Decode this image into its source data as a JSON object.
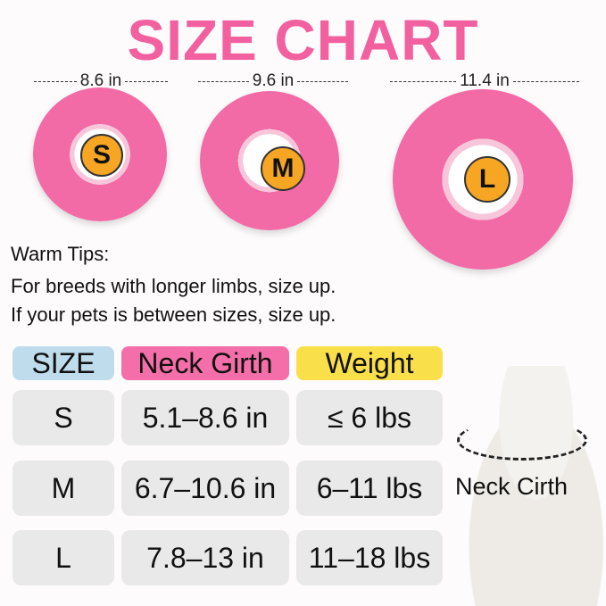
{
  "title": "SIZE CHART",
  "sizes_visual": [
    {
      "letter": "S",
      "diameter": "8.6 in"
    },
    {
      "letter": "M",
      "diameter": "9.6 in"
    },
    {
      "letter": "L",
      "diameter": "11.4 in"
    }
  ],
  "tips": {
    "heading": "Warm Tips:",
    "lines": [
      "For breeds with longer limbs, size up.",
      "If your pets is between sizes, size up."
    ]
  },
  "table": {
    "headers": [
      "SIZE",
      "Neck Girth",
      "Weight"
    ],
    "header_colors": [
      "#bfdcec",
      "#f46fa9",
      "#f9e04b"
    ],
    "rows": [
      [
        "S",
        "5.1–8.6 in",
        "≤ 6 lbs"
      ],
      [
        "M",
        "6.7–10.6 in",
        "6–11 lbs"
      ],
      [
        "L",
        "7.8–13 in",
        "11–18 lbs"
      ]
    ]
  },
  "cat_label": "Neck Cirth",
  "colors": {
    "title": "#f2609f",
    "donut": "#f26aa6",
    "letter_badge": "#f6a623"
  }
}
